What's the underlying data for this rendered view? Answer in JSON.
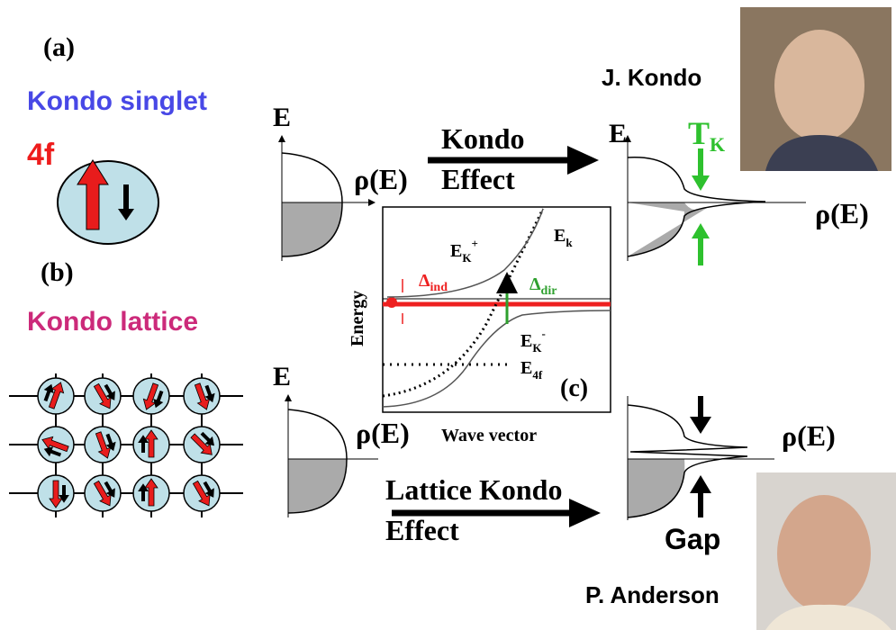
{
  "panel_a": {
    "label": "(a)",
    "title": "Kondo singlet",
    "orbital": "4f"
  },
  "panel_b": {
    "label": "(b)",
    "title": "Kondo lattice"
  },
  "single_impurity": {
    "dos_left": {
      "axis_e": "E",
      "axis_rho": "ρ(E)"
    },
    "arrow": [
      "Kondo",
      "Effect"
    ],
    "dos_right": {
      "axis_e": "E",
      "axis_rho": "ρ(E)",
      "scale": {
        "main": "T",
        "sub": "K"
      }
    },
    "person": "J. Kondo"
  },
  "lattice": {
    "dos_left": {
      "axis_e": "E",
      "axis_rho": "ρ(E)"
    },
    "arrow": [
      "Lattice Kondo",
      "Effect"
    ],
    "dos_right": {
      "axis_rho": "ρ(E)",
      "gap": "Gap"
    },
    "person": "P. Anderson"
  },
  "panel_c": {
    "label": "(c)",
    "y_axis": "Energy",
    "x_axis": "Wave vector",
    "e_k": {
      "main": "E",
      "sub": "k"
    },
    "e_k_plus": {
      "main": "E",
      "sub": "K",
      "sup": "+"
    },
    "e_k_minus": {
      "main": "E",
      "sub": "K",
      "sup": "-"
    },
    "e_4f": {
      "main": "E",
      "sub": "4f"
    },
    "delta_ind": {
      "main": "Δ",
      "sub": "ind"
    },
    "delta_dir": {
      "main": "Δ",
      "sub": "dir"
    }
  }
}
